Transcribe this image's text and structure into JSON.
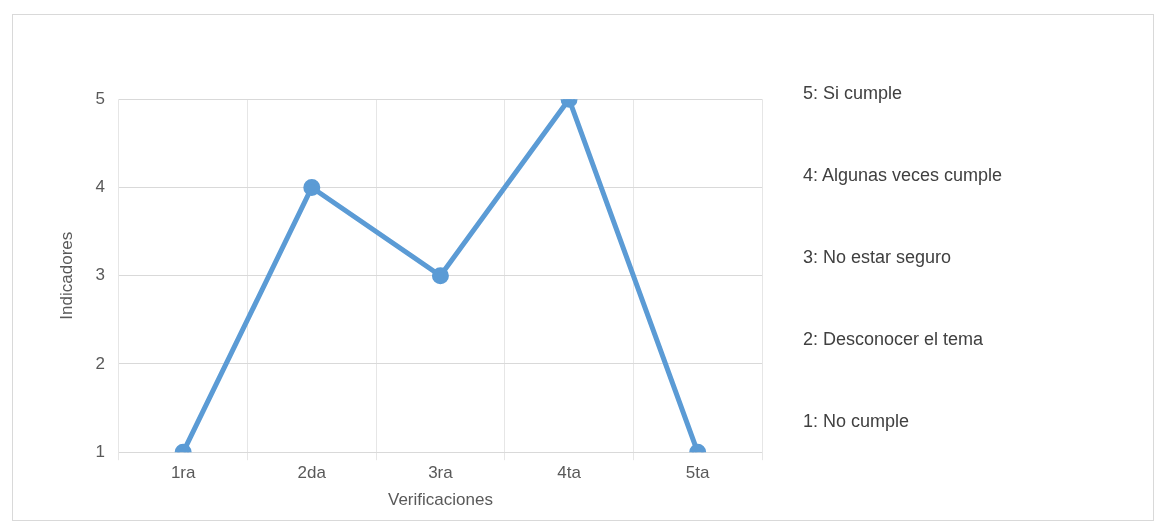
{
  "chart_data": {
    "type": "line",
    "xlabel": "Verificaciones",
    "ylabel": "Indicadores",
    "categories": [
      "1ra",
      "2da",
      "3ra",
      "4ta",
      "5ta"
    ],
    "series": [
      {
        "color": "#5b9bd5",
        "values": [
          1,
          4,
          3,
          5,
          1
        ]
      }
    ],
    "ylim": [
      1,
      5
    ],
    "yticks": [
      1,
      2,
      3,
      4,
      5
    ],
    "grid": true,
    "marker": "circle",
    "line_style": "solid",
    "annotations": [
      "5: Si cumple",
      "4: Algunas veces cumple",
      "3: No estar seguro",
      "2: Desconocer el tema",
      "1: No cumple"
    ]
  }
}
